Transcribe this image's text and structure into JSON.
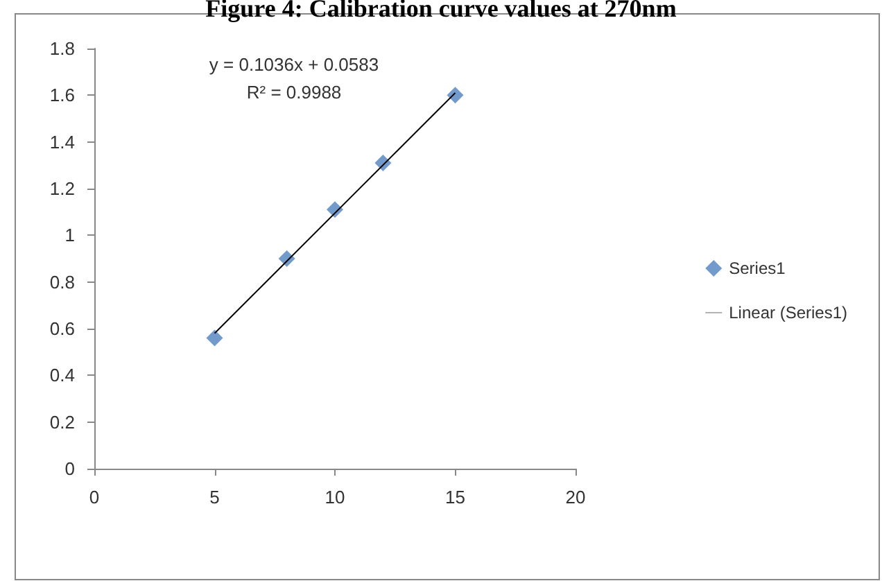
{
  "chart_data": {
    "type": "scatter",
    "title": "Figure 4: Calibration curve values at 270nm",
    "series": [
      {
        "name": "Series1",
        "color": "#4f81bd",
        "marker": "diamond",
        "x": [
          5,
          8,
          10,
          12,
          15
        ],
        "values": [
          0.56,
          0.9,
          1.11,
          1.31,
          1.6
        ]
      },
      {
        "name": "Linear (Series1)",
        "type": "line",
        "color": "#000000",
        "marker": "none",
        "x": [
          5,
          15
        ],
        "values": [
          0.58,
          1.61
        ]
      }
    ],
    "xlim": [
      0,
      20
    ],
    "xticks": [
      0,
      5,
      10,
      15,
      20
    ],
    "ylim": [
      0,
      1.8
    ],
    "yticks": [
      0,
      0.2,
      0.4,
      0.6,
      0.8,
      1,
      1.2,
      1.4,
      1.6,
      1.8
    ],
    "grid": false,
    "legend": "right",
    "annotations": [
      "y = 0.1036x + 0.0583",
      "R² = 0.9988"
    ]
  }
}
